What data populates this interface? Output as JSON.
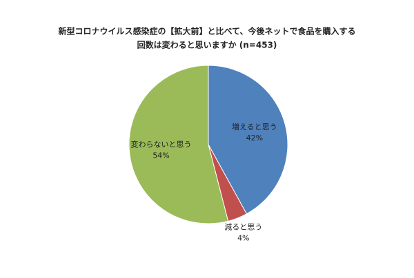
{
  "chart_data": {
    "type": "pie",
    "title": [
      "新型コロナウイルス感染症の【拡大前】と比べて、今後ネットで食品を購入する",
      "回数は変わると思いますか (n=453)"
    ],
    "categories": [
      "増えると思う",
      "減ると思う",
      "変わらないと思う"
    ],
    "values": [
      42,
      4,
      54
    ],
    "value_labels": [
      "42%",
      "4%",
      "54%"
    ],
    "colors": [
      "#4f81bd",
      "#c0504d",
      "#9bbb59"
    ]
  }
}
